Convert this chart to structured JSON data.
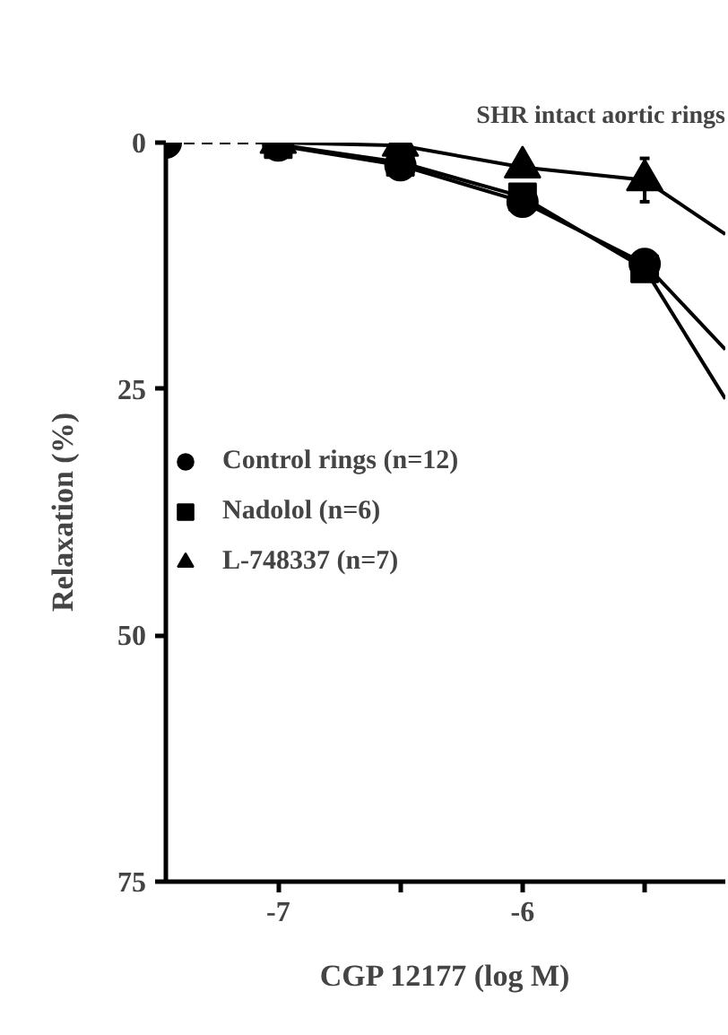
{
  "chart_data": {
    "type": "line",
    "title": "SHR intact aortic rings",
    "xlabel": "CGP 12177 (log M)",
    "ylabel": "Relaxation (%)",
    "x": [
      -7,
      -6.5,
      -6,
      -5.5,
      -5.17
    ],
    "series": [
      {
        "type": "line",
        "line_style": "dashed",
        "marker": "circle",
        "x": [
          -7.46,
          -7
        ],
        "values": [
          0,
          0
        ]
      },
      {
        "name": "Control rings (n=12)",
        "color": "#000000",
        "marker": "circle",
        "values": [
          0.3,
          2.3,
          6,
          12.3,
          21
        ]
      },
      {
        "name": "Nadolol (n=6)",
        "color": "#000000",
        "marker": "square",
        "values": [
          0.2,
          2,
          5.5,
          12.8,
          26
        ]
      },
      {
        "name": "L-748337 (n=7)",
        "color": "#000000",
        "marker": "triangle",
        "values": [
          0,
          0.3,
          2.5,
          3.8,
          9.3
        ],
        "errors": [
          null,
          null,
          null,
          2.2,
          null
        ]
      }
    ],
    "xlim": [
      -7.46,
      -5.17
    ],
    "ylim": [
      75,
      0
    ],
    "xticks": [
      {
        "value": -7,
        "label": "-7"
      },
      {
        "value": -6.5,
        "label": null
      },
      {
        "value": -6,
        "label": "-6"
      },
      {
        "value": -5.5,
        "label": null
      }
    ],
    "yticks": [
      0,
      25,
      50,
      75
    ],
    "legend": "left",
    "line_style": "solid"
  }
}
